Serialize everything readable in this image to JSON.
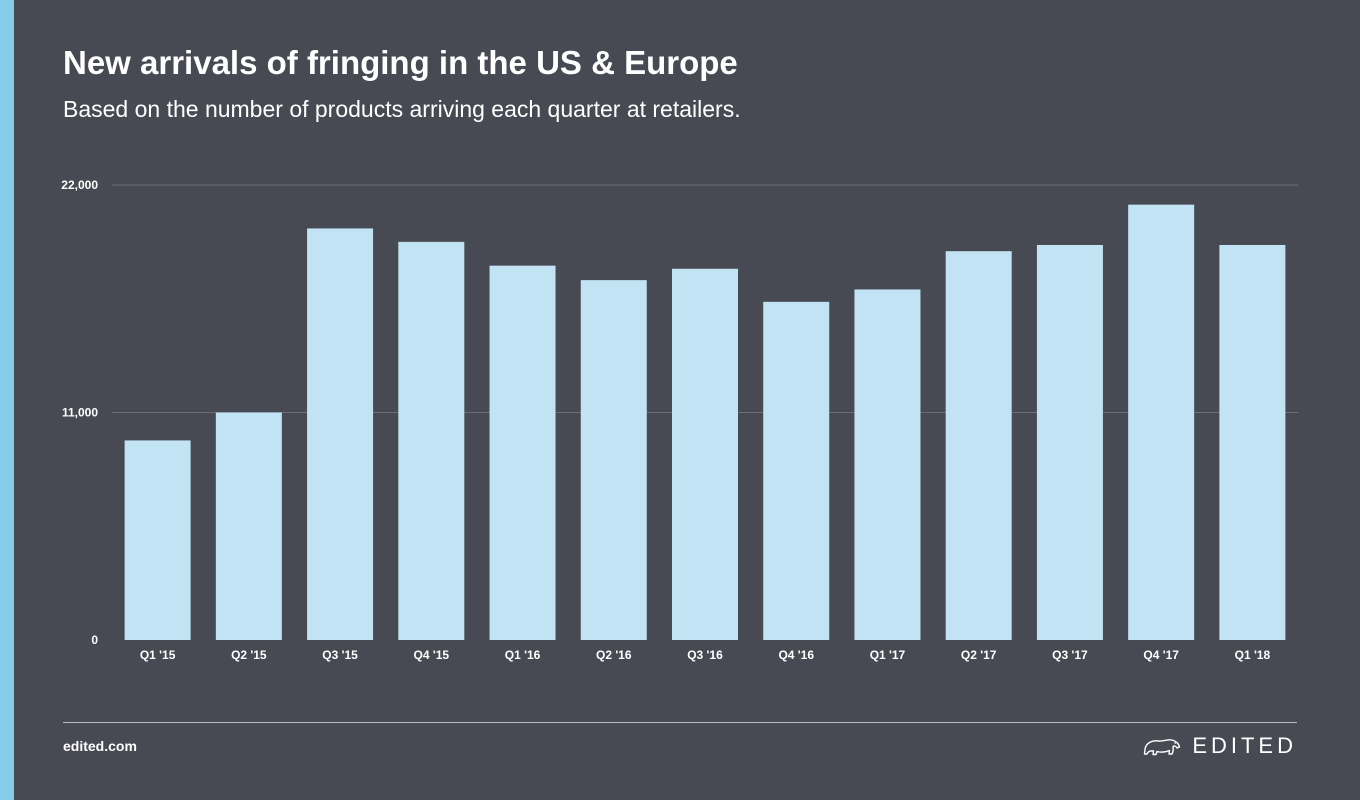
{
  "header": {
    "title": "New arrivals of fringing in the US & Europe",
    "subtitle": "Based on the number of products arriving each quarter at retailers."
  },
  "footer": {
    "url": "edited.com",
    "brand": "EDITED",
    "brand_icon": "polar-bear-icon"
  },
  "colors": {
    "background": "#474a53",
    "accent": "#86cbea",
    "bar": "#c2e3f3",
    "gridline": "#6b6e77"
  },
  "chart_data": {
    "type": "bar",
    "categories": [
      "Q1 '15",
      "Q2 '15",
      "Q3 '15",
      "Q4 '15",
      "Q1 '16",
      "Q2 '16",
      "Q3 '16",
      "Q4 '16",
      "Q1 '17",
      "Q2 '17",
      "Q3 '17",
      "Q4 '17",
      "Q1 '18"
    ],
    "values": [
      9650,
      11000,
      19900,
      19250,
      18100,
      17400,
      17950,
      16350,
      16950,
      18800,
      19100,
      21050,
      19100
    ],
    "yticks": [
      0,
      11000,
      22000
    ],
    "ytick_labels": [
      "0",
      "11,000",
      "22,000"
    ],
    "ylim": [
      0,
      22000
    ],
    "grid": true,
    "legend": "none"
  }
}
